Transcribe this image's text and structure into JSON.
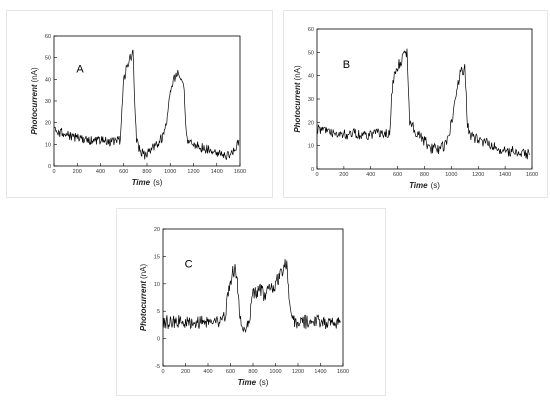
{
  "chart_data": [
    {
      "type": "line",
      "panel_label": "A",
      "xlabel": "Time",
      "xlabel_unit": "(s)",
      "ylabel": "Photocurrent",
      "ylabel_unit": "(nA)",
      "xlim": [
        0,
        1600
      ],
      "ylim": [
        0,
        60
      ],
      "xticks": [
        0,
        200,
        400,
        600,
        800,
        1000,
        1200,
        1400,
        1600
      ],
      "yticks": [
        0,
        10,
        20,
        30,
        40,
        50,
        60
      ],
      "grid": false,
      "series": [
        {
          "x": [
            0,
            100,
            200,
            300,
            400,
            500,
            570,
            590,
            600,
            620,
            650,
            680,
            700,
            710,
            730,
            780,
            830,
            880,
            930,
            980,
            1000,
            1030,
            1060,
            1080,
            1100,
            1120,
            1130,
            1150,
            1200,
            1300,
            1400,
            1500,
            1560,
            1580,
            1590
          ],
          "y": [
            16,
            15,
            13,
            12,
            12,
            11,
            12,
            30,
            40,
            44,
            50,
            52,
            22,
            12,
            8,
            5,
            7,
            10,
            13,
            24,
            35,
            40,
            43,
            43,
            40,
            35,
            20,
            12,
            10,
            8,
            6,
            5,
            7,
            10,
            12
          ]
        }
      ]
    },
    {
      "type": "line",
      "panel_label": "B",
      "xlabel": "Time",
      "xlabel_unit": "(s)",
      "ylabel": "Photocurrent",
      "ylabel_unit": "(nA)",
      "xlim": [
        0,
        1600
      ],
      "ylim": [
        0,
        60
      ],
      "xticks": [
        0,
        200,
        400,
        600,
        800,
        1000,
        1200,
        1400,
        1600
      ],
      "yticks": [
        0,
        10,
        20,
        30,
        40,
        50,
        60
      ],
      "grid": false,
      "series": [
        {
          "x": [
            0,
            100,
            200,
            300,
            400,
            500,
            540,
            560,
            580,
            620,
            650,
            670,
            690,
            720,
            760,
            800,
            850,
            900,
            950,
            980,
            1000,
            1040,
            1060,
            1080,
            1100,
            1120,
            1150,
            1200,
            1300,
            1400,
            1500,
            1580
          ],
          "y": [
            17,
            16,
            15,
            15,
            15,
            15,
            15,
            35,
            42,
            46,
            49,
            50,
            20,
            17,
            14,
            12,
            9,
            8,
            10,
            14,
            20,
            33,
            40,
            42,
            43,
            18,
            14,
            12,
            10,
            8,
            7,
            6
          ]
        }
      ]
    },
    {
      "type": "line",
      "panel_label": "C",
      "xlabel": "Time",
      "xlabel_unit": "(s)",
      "ylabel": "Photocurrent",
      "ylabel_unit": "(nA)",
      "xlim": [
        0,
        1600
      ],
      "ylim": [
        -5,
        20
      ],
      "xticks": [
        0,
        200,
        400,
        600,
        800,
        1000,
        1200,
        1400,
        1600
      ],
      "yticks": [
        -5,
        0,
        5,
        10,
        15,
        20
      ],
      "grid": false,
      "series": [
        {
          "x": [
            0,
            100,
            200,
            300,
            400,
            500,
            550,
            580,
            600,
            620,
            640,
            660,
            680,
            700,
            730,
            760,
            800,
            850,
            900,
            950,
            1000,
            1050,
            1080,
            1100,
            1130,
            1160,
            1200,
            1300,
            1400,
            1500,
            1580
          ],
          "y": [
            3,
            3,
            3,
            3,
            3,
            3,
            4,
            8,
            10,
            12,
            13,
            10,
            5,
            3,
            2,
            3,
            8,
            9,
            8,
            9,
            10,
            12,
            14,
            13,
            5,
            3,
            3,
            3,
            3,
            3,
            3
          ]
        }
      ]
    }
  ]
}
